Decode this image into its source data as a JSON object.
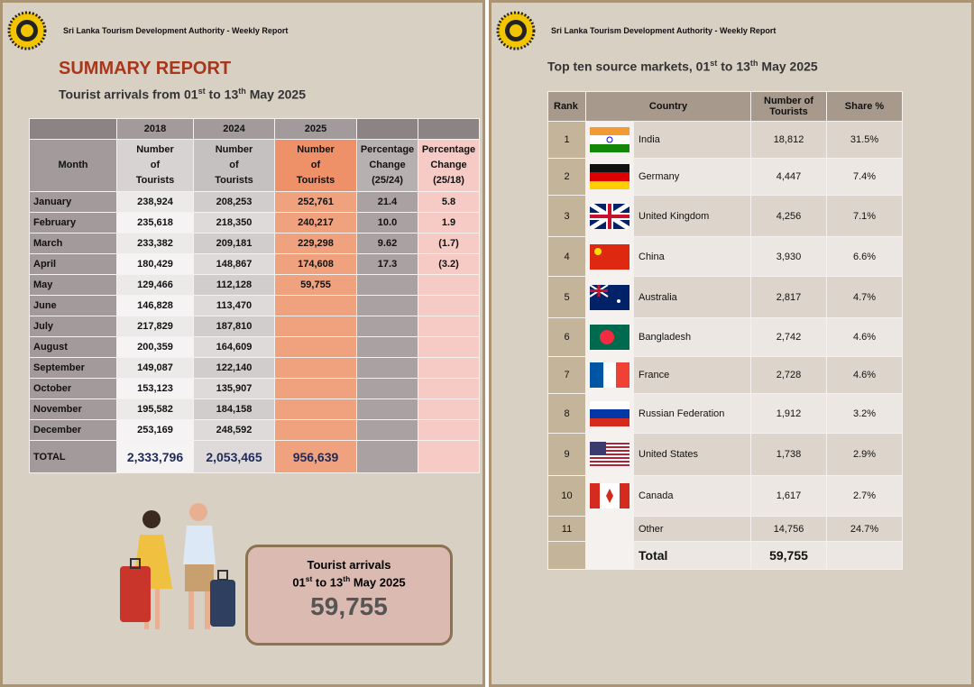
{
  "left_page": {
    "header": "Sri Lanka Tourism Development Authority - Weekly Report",
    "title": "SUMMARY REPORT",
    "subtitle": [
      "Tourist arrivals from 01",
      "st",
      " to 13",
      "th",
      " May 2025"
    ],
    "table": {
      "year_headers": [
        "2018",
        "2024",
        "2025"
      ],
      "column_headers": [
        [
          "Month"
        ],
        [
          "Number",
          "of",
          "Tourists"
        ],
        [
          "Number",
          "of",
          "Tourists"
        ],
        [
          "Number",
          "of",
          "Tourists"
        ],
        [
          "Percentage",
          "Change",
          "(25/24)"
        ],
        [
          "Percentage",
          "Change",
          "(25/18)"
        ]
      ],
      "rows": [
        [
          "January",
          "238,924",
          "208,253",
          "252,761",
          "21.4",
          "5.8"
        ],
        [
          "February",
          "235,618",
          "218,350",
          "240,217",
          "10.0",
          "1.9"
        ],
        [
          "March",
          "233,382",
          "209,181",
          "229,298",
          "9.62",
          "(1.7)"
        ],
        [
          "April",
          "180,429",
          "148,867",
          "174,608",
          "17.3",
          "(3.2)"
        ],
        [
          "May",
          "129,466",
          "112,128",
          "59,755"
        ],
        [
          "June",
          "146,828",
          "113,470"
        ],
        [
          "July",
          "217,829",
          "187,810"
        ],
        [
          "August",
          "200,359",
          "164,609"
        ],
        [
          "September",
          "149,087",
          "122,140"
        ],
        [
          "October",
          "153,123",
          "135,907"
        ],
        [
          "November",
          "195,582",
          "184,158"
        ],
        [
          "December",
          "253,169",
          "248,592"
        ]
      ],
      "total": [
        "TOTAL",
        "2,333,796",
        "2,053,465",
        "956,639"
      ]
    },
    "summary_box": {
      "label": "Tourist arrivals",
      "period": [
        "01",
        "st",
        " to 13",
        "th",
        " May 2025"
      ],
      "value": "59,755"
    }
  },
  "right_page": {
    "header": "Sri Lanka Tourism Development Authority - Weekly Report",
    "title": [
      "Top ten source markets, 01",
      "st",
      " to 13",
      "th",
      " May 2025"
    ],
    "table": {
      "headers": [
        "Rank",
        "Country",
        [
          "Number of",
          "Tourists"
        ],
        "Share %"
      ],
      "rows": [
        {
          "rank": "1",
          "country": "India",
          "tourists": "18,812",
          "share": "31.5%"
        },
        {
          "rank": "2",
          "country": "Germany",
          "tourists": "4,447",
          "share": "7.4%"
        },
        {
          "rank": "3",
          "country": "United Kingdom",
          "tourists": "4,256",
          "share": "7.1%"
        },
        {
          "rank": "4",
          "country": "China",
          "tourists": "3,930",
          "share": "6.6%"
        },
        {
          "rank": "5",
          "country": "Australia",
          "tourists": "2,817",
          "share": "4.7%"
        },
        {
          "rank": "6",
          "country": "Bangladesh",
          "tourists": "2,742",
          "share": "4.6%"
        },
        {
          "rank": "7",
          "country": "France",
          "tourists": "2,728",
          "share": "4.6%"
        },
        {
          "rank": "8",
          "country": "Russian Federation",
          "tourists": "1,912",
          "share": "3.2%"
        },
        {
          "rank": "9",
          "country": "United States",
          "tourists": "1,738",
          "share": "2.9%"
        },
        {
          "rank": "10",
          "country": "Canada",
          "tourists": "1,617",
          "share": "2.7%"
        },
        {
          "rank": "11",
          "country": "Other",
          "tourists": "14,756",
          "share": "24.7%"
        }
      ],
      "total": {
        "label": "Total",
        "tourists": "59,755"
      }
    }
  }
}
